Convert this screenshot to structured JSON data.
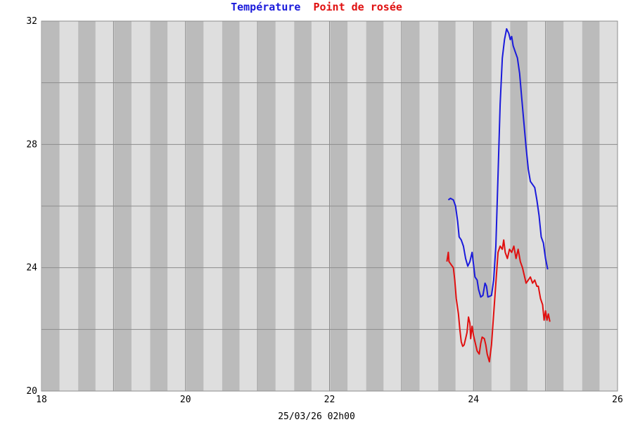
{
  "chart_data": {
    "type": "line",
    "title_parts": [
      {
        "text": "Température",
        "color": "#1a1adb"
      },
      {
        "text": "Point de rosée",
        "color": "#e01010"
      }
    ],
    "footer": "25/03/26 02h00",
    "xlim": [
      18,
      26
    ],
    "ylim": [
      20,
      32
    ],
    "x_ticks": [
      18,
      20,
      22,
      24,
      26
    ],
    "x_tick_labels": [
      "18",
      "20",
      "22",
      "24",
      "26"
    ],
    "y_ticks": [
      20,
      24,
      28,
      32
    ],
    "y_tick_labels": [
      "20",
      "24",
      "28",
      "32"
    ],
    "y_gridlines": [
      22,
      24,
      26,
      28,
      30,
      32
    ],
    "x_gridlines": [
      19,
      20,
      21,
      22,
      23,
      24,
      25,
      26
    ],
    "grid": true,
    "colors": {
      "band_light": "#dedede",
      "band_dark": "#bbbbbb",
      "grid": "#8c8c8c"
    },
    "series": [
      {
        "color": "#1a1adb",
        "points": [
          [
            23.65,
            26.2
          ],
          [
            23.68,
            26.25
          ],
          [
            23.72,
            26.2
          ],
          [
            23.75,
            26.0
          ],
          [
            23.78,
            25.5
          ],
          [
            23.8,
            25.0
          ],
          [
            23.83,
            24.9
          ],
          [
            23.86,
            24.7
          ],
          [
            23.89,
            24.3
          ],
          [
            23.92,
            24.05
          ],
          [
            23.95,
            24.2
          ],
          [
            23.98,
            24.5
          ],
          [
            24.0,
            24.1
          ],
          [
            24.02,
            23.7
          ],
          [
            24.05,
            23.6
          ],
          [
            24.07,
            23.3
          ],
          [
            24.1,
            23.05
          ],
          [
            24.13,
            23.1
          ],
          [
            24.16,
            23.5
          ],
          [
            24.18,
            23.4
          ],
          [
            24.2,
            23.05
          ],
          [
            24.25,
            23.1
          ],
          [
            24.28,
            23.6
          ],
          [
            24.31,
            24.7
          ],
          [
            24.34,
            27.0
          ],
          [
            24.37,
            29.3
          ],
          [
            24.4,
            30.8
          ],
          [
            24.43,
            31.4
          ],
          [
            24.46,
            31.75
          ],
          [
            24.49,
            31.6
          ],
          [
            24.51,
            31.4
          ],
          [
            24.53,
            31.5
          ],
          [
            24.55,
            31.2
          ],
          [
            24.58,
            31.0
          ],
          [
            24.61,
            30.8
          ],
          [
            24.64,
            30.3
          ],
          [
            24.67,
            29.5
          ],
          [
            24.7,
            28.7
          ],
          [
            24.73,
            27.9
          ],
          [
            24.76,
            27.2
          ],
          [
            24.79,
            26.8
          ],
          [
            24.82,
            26.7
          ],
          [
            24.85,
            26.6
          ],
          [
            24.88,
            26.2
          ],
          [
            24.91,
            25.7
          ],
          [
            24.94,
            25.0
          ],
          [
            24.97,
            24.8
          ],
          [
            25.0,
            24.3
          ],
          [
            25.03,
            23.95
          ]
        ]
      },
      {
        "color": "#e01010",
        "points": [
          [
            23.63,
            24.2
          ],
          [
            23.65,
            24.5
          ],
          [
            23.66,
            24.2
          ],
          [
            23.69,
            24.1
          ],
          [
            23.72,
            24.0
          ],
          [
            23.74,
            23.6
          ],
          [
            23.76,
            23.0
          ],
          [
            23.79,
            22.5
          ],
          [
            23.81,
            22.0
          ],
          [
            23.83,
            21.6
          ],
          [
            23.85,
            21.45
          ],
          [
            23.87,
            21.5
          ],
          [
            23.89,
            21.7
          ],
          [
            23.91,
            21.9
          ],
          [
            23.93,
            22.4
          ],
          [
            23.95,
            22.2
          ],
          [
            23.96,
            21.7
          ],
          [
            23.98,
            22.1
          ],
          [
            24.0,
            21.8
          ],
          [
            24.02,
            21.6
          ],
          [
            24.05,
            21.3
          ],
          [
            24.08,
            21.2
          ],
          [
            24.1,
            21.55
          ],
          [
            24.12,
            21.75
          ],
          [
            24.15,
            21.7
          ],
          [
            24.17,
            21.5
          ],
          [
            24.19,
            21.2
          ],
          [
            24.22,
            20.95
          ],
          [
            24.25,
            21.5
          ],
          [
            24.28,
            22.5
          ],
          [
            24.31,
            23.5
          ],
          [
            24.34,
            24.5
          ],
          [
            24.37,
            24.7
          ],
          [
            24.4,
            24.6
          ],
          [
            24.42,
            24.9
          ],
          [
            24.44,
            24.5
          ],
          [
            24.47,
            24.3
          ],
          [
            24.5,
            24.6
          ],
          [
            24.53,
            24.5
          ],
          [
            24.56,
            24.7
          ],
          [
            24.59,
            24.3
          ],
          [
            24.62,
            24.6
          ],
          [
            24.65,
            24.2
          ],
          [
            24.68,
            24.0
          ],
          [
            24.7,
            23.8
          ],
          [
            24.73,
            23.5
          ],
          [
            24.76,
            23.6
          ],
          [
            24.79,
            23.7
          ],
          [
            24.82,
            23.5
          ],
          [
            24.85,
            23.6
          ],
          [
            24.88,
            23.4
          ],
          [
            24.9,
            23.4
          ],
          [
            24.93,
            23.0
          ],
          [
            24.96,
            22.8
          ],
          [
            24.98,
            22.3
          ],
          [
            25.0,
            22.6
          ],
          [
            25.02,
            22.3
          ],
          [
            25.04,
            22.5
          ],
          [
            25.06,
            22.25
          ]
        ]
      }
    ]
  }
}
